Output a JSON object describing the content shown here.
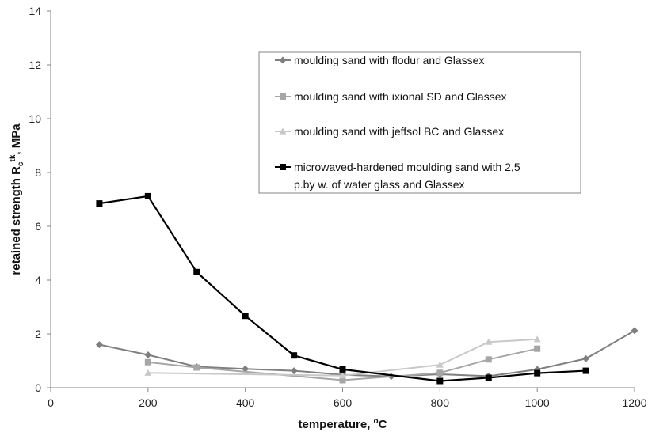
{
  "chart_data": {
    "type": "line",
    "xlabel": "temperature, °C",
    "xlabel_parts": [
      "temperature, ",
      "o",
      "C"
    ],
    "ylabel": "retained strength Rc tk, MPa",
    "ylabel_parts": [
      "retained strength R",
      "c",
      "tk",
      ", MPa"
    ],
    "xlim": [
      0,
      1200
    ],
    "ylim": [
      0,
      14
    ],
    "xticks": [
      0,
      200,
      400,
      600,
      800,
      1000,
      1200
    ],
    "yticks": [
      0,
      2,
      4,
      6,
      8,
      10,
      12,
      14
    ],
    "grid": false,
    "legend_position": "top-right",
    "series": [
      {
        "name": "moulding sand with flodur and Glassex",
        "marker": "diamond",
        "color": "#7f7f7f",
        "x": [
          100,
          200,
          300,
          400,
          500,
          600,
          700,
          800,
          900,
          1000,
          1100,
          1200
        ],
        "values": [
          1.6,
          1.22,
          0.78,
          0.7,
          0.63,
          0.48,
          0.42,
          0.5,
          0.43,
          0.68,
          1.08,
          2.12
        ]
      },
      {
        "name": "moulding sand with ixional SD and Glassex",
        "marker": "square",
        "color": "#a6a6a6",
        "x": [
          200,
          300,
          600,
          800,
          900,
          1000
        ],
        "values": [
          0.95,
          0.75,
          0.28,
          0.55,
          1.05,
          1.45
        ]
      },
      {
        "name": "moulding sand with jeffsol BC and Glassex",
        "marker": "triangle",
        "color": "#c8c8c8",
        "x": [
          200,
          600,
          800,
          900,
          1000
        ],
        "values": [
          0.55,
          0.45,
          0.85,
          1.7,
          1.8
        ]
      },
      {
        "name": "microwaved-hardened moulding sand with 2,5 p.by w. of water glass and Glassex",
        "legend_lines": [
          "microwaved-hardened moulding sand with 2,5",
          "p.by w. of water glass and Glassex"
        ],
        "marker": "square",
        "color": "#000000",
        "x": [
          100,
          200,
          300,
          400,
          500,
          600,
          800,
          900,
          1000,
          1100
        ],
        "values": [
          6.85,
          7.12,
          4.3,
          2.67,
          1.2,
          0.68,
          0.25,
          0.37,
          0.54,
          0.63
        ]
      }
    ]
  }
}
